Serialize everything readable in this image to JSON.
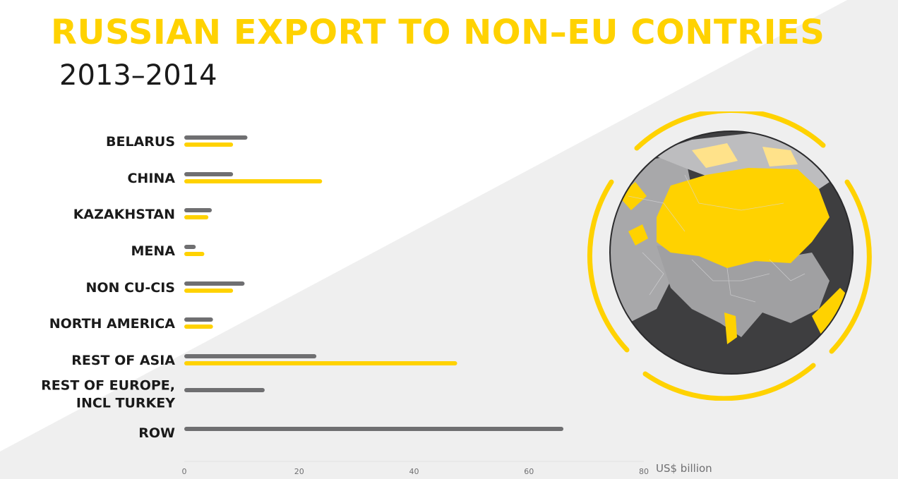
{
  "title": "RUSSIAN EXPORT TO NON–EU CONTRIES",
  "subtitle": "2013–2014",
  "colors": {
    "accent": "#ffd200",
    "series_gray": "#6f6f71",
    "text": "#1a1a1a",
    "background_shape": "#efefef"
  },
  "chart_data": {
    "type": "bar",
    "orientation": "horizontal",
    "categories": [
      "BELARUS",
      "CHINA",
      "KAZAKHSTAN",
      "MENA",
      "NON CU-CIS",
      "NORTH AMERICA",
      "REST OF ASIA",
      "REST OF EUROPE, INCL TURKEY",
      "ROW"
    ],
    "category_lines": [
      [
        "BELARUS"
      ],
      [
        "CHINA"
      ],
      [
        "KAZAKHSTAN"
      ],
      [
        "MENA"
      ],
      [
        "NON CU-CIS"
      ],
      [
        "NORTH AMERICA"
      ],
      [
        "REST OF ASIA"
      ],
      [
        "REST OF EUROPE,",
        "INCL TURKEY"
      ],
      [
        "ROW"
      ]
    ],
    "series": [
      {
        "color": "#6f6f71",
        "values": [
          11,
          8.5,
          4.8,
          2,
          10.5,
          5,
          23,
          14,
          66
        ]
      },
      {
        "color": "#ffd200",
        "values": [
          8.5,
          24,
          4.2,
          3.5,
          8.5,
          5,
          47.5,
          null,
          null
        ]
      }
    ],
    "x_ticks": [
      "0",
      "20",
      "40",
      "60",
      "80"
    ],
    "xlim": [
      0,
      80
    ],
    "xlabel": "US$ billion",
    "grid": false,
    "legend": "none"
  }
}
